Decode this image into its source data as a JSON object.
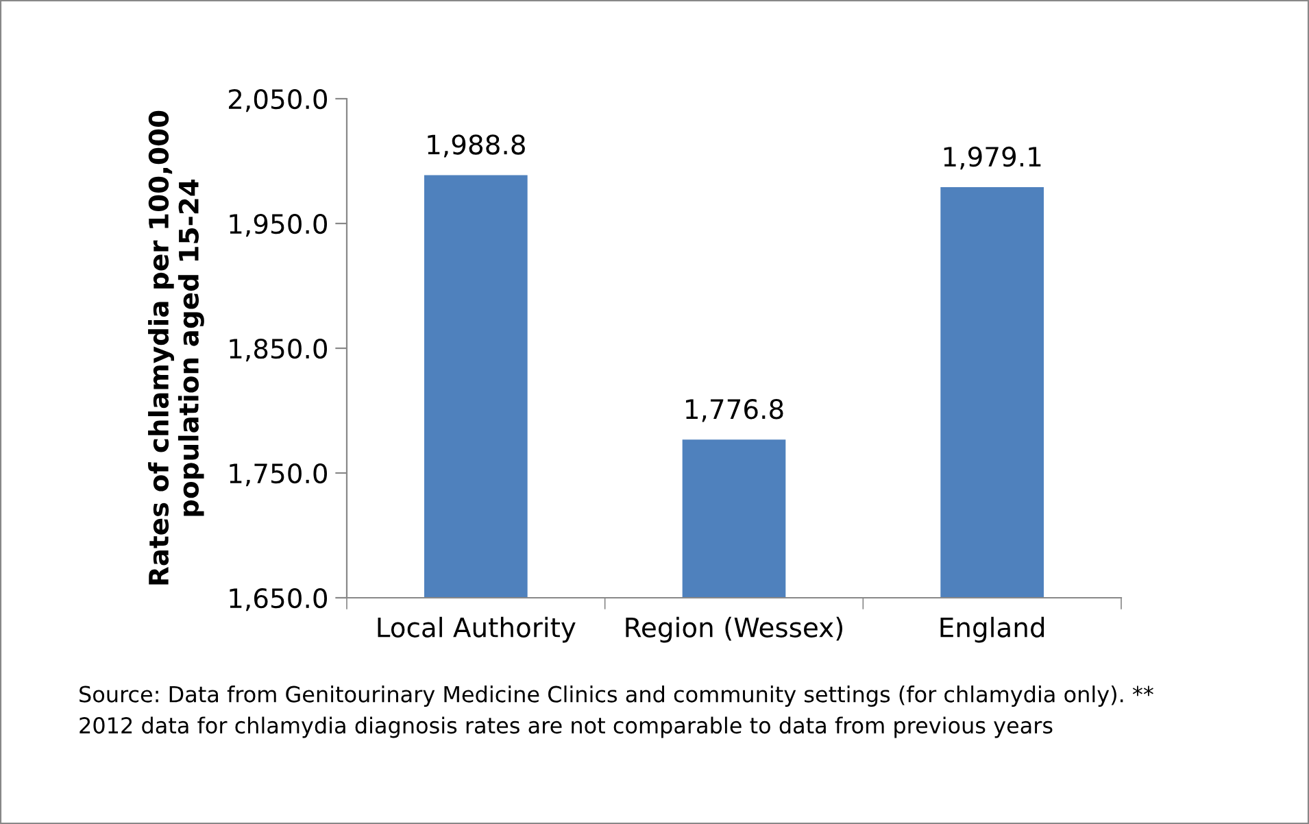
{
  "chart_data": {
    "type": "bar",
    "ylabel": "Rates of chlamydia per 100,000\npopulation aged 15-24",
    "categories": [
      "Local Authority",
      "Region (Wessex)",
      "England"
    ],
    "values": [
      1988.8,
      1776.8,
      1979.1
    ],
    "value_labels": [
      "1,988.8",
      "1,776.8",
      "1,979.1"
    ],
    "color": "#4f81bd",
    "ylim": [
      1650,
      2050
    ],
    "yticks": [
      {
        "value": 1650,
        "label": "1,650.0"
      },
      {
        "value": 1750,
        "label": "1,750.0"
      },
      {
        "value": 1850,
        "label": "1,850.0"
      },
      {
        "value": 1950,
        "label": "1,950.0"
      },
      {
        "value": 2050,
        "label": "2,050.0"
      }
    ],
    "grid": false,
    "annotations": [
      "Source: Data from Genitourinary Medicine Clinics and community settings (for chlamydia only). **\n2012 data for chlamydia diagnosis rates are not comparable to data from previous years"
    ]
  }
}
